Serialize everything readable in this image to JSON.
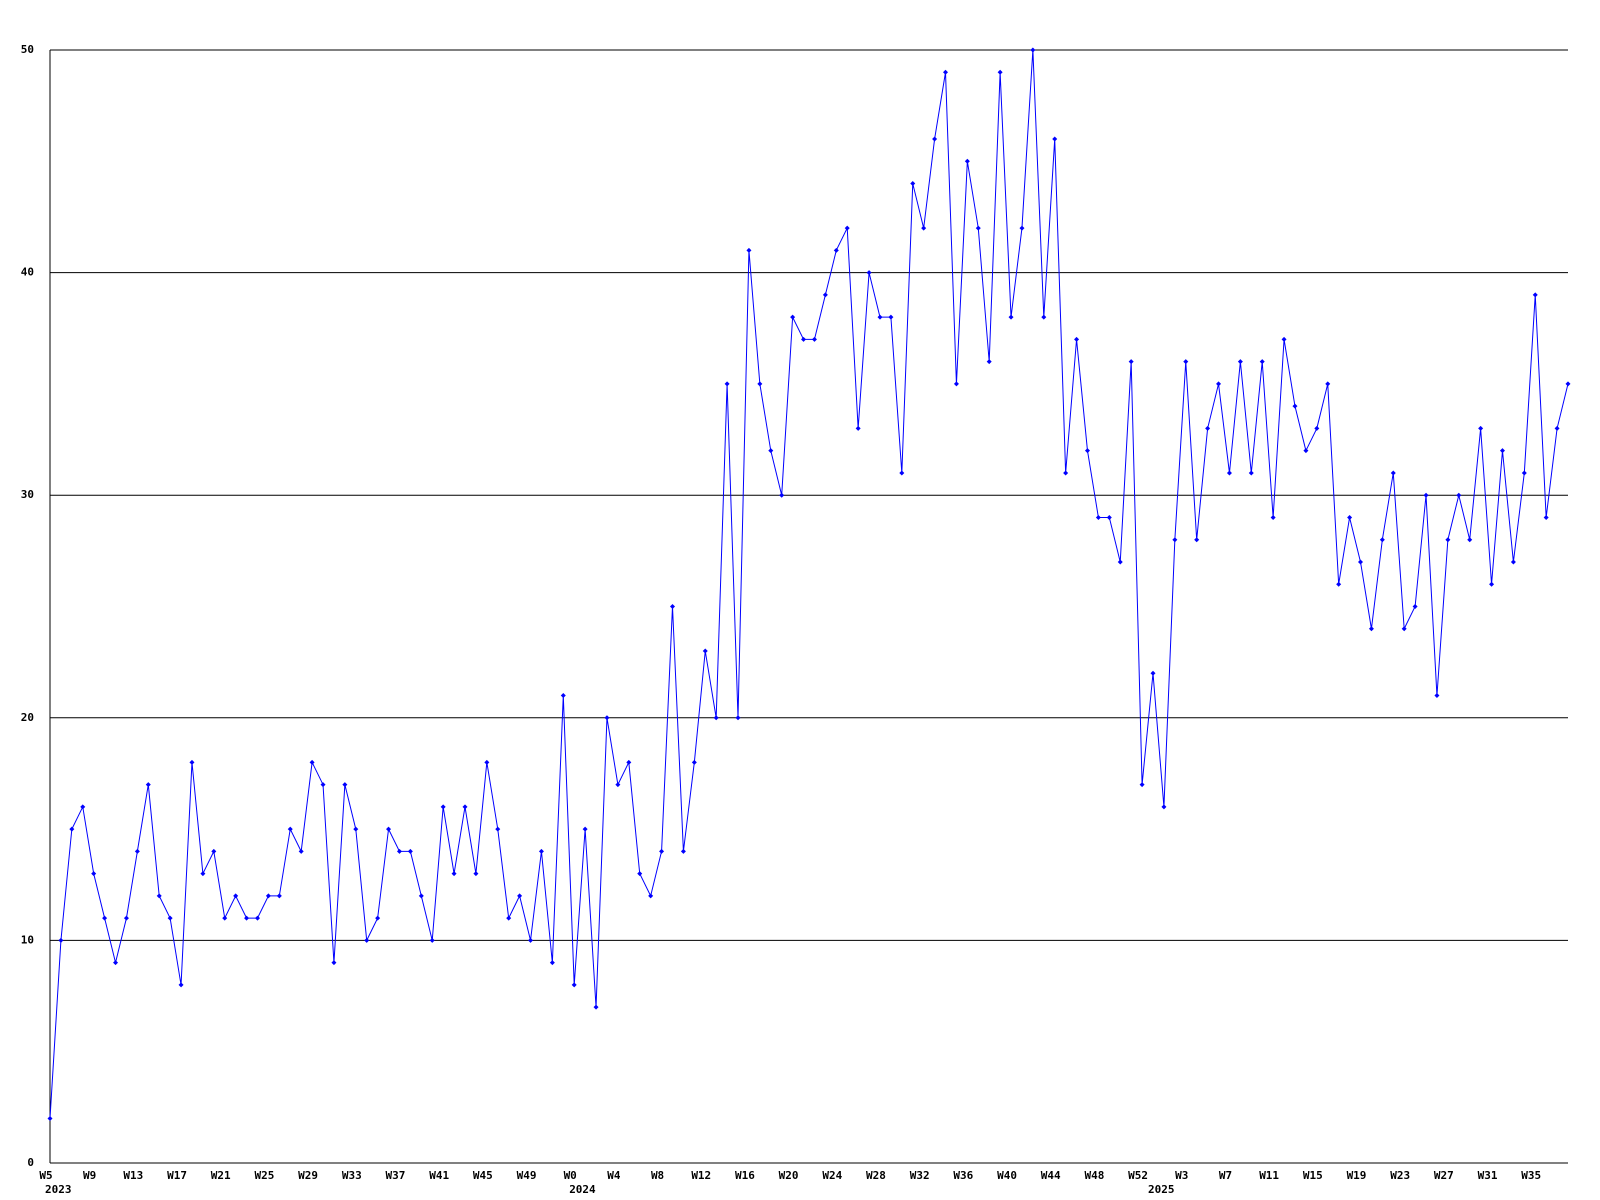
{
  "chart_data": {
    "type": "line",
    "categories": [
      "W5",
      null,
      null,
      null,
      "W9",
      null,
      null,
      null,
      "W13",
      null,
      null,
      null,
      "W17",
      null,
      null,
      null,
      "W21",
      null,
      null,
      null,
      "W25",
      null,
      null,
      null,
      "W29",
      null,
      null,
      null,
      "W33",
      null,
      null,
      null,
      "W37",
      null,
      null,
      null,
      "W41",
      null,
      null,
      null,
      "W45",
      null,
      null,
      null,
      "W49",
      null,
      null,
      null,
      "W0",
      null,
      null,
      null,
      "W4",
      null,
      null,
      null,
      "W8",
      null,
      null,
      null,
      "W12",
      null,
      null,
      null,
      "W16",
      null,
      null,
      null,
      "W20",
      null,
      null,
      null,
      "W24",
      null,
      null,
      null,
      "W28",
      null,
      null,
      null,
      "W32",
      null,
      null,
      null,
      "W36",
      null,
      null,
      null,
      "W40",
      null,
      null,
      null,
      "W44",
      null,
      null,
      null,
      "W48",
      null,
      null,
      null,
      "W52",
      null,
      null,
      null,
      "W3",
      null,
      null,
      null,
      "W7",
      null,
      null,
      null,
      "W11",
      null,
      null,
      null,
      "W15",
      null,
      null,
      null,
      "W19",
      null,
      null,
      null,
      "W23",
      null,
      null,
      null,
      "W27",
      null,
      null,
      null,
      "W31",
      null,
      null,
      null,
      "W35",
      null,
      null,
      null
    ],
    "years": [
      "2023",
      null,
      null,
      null,
      null,
      null,
      null,
      null,
      null,
      null,
      null,
      null,
      null,
      null,
      null,
      null,
      null,
      null,
      null,
      null,
      null,
      null,
      null,
      null,
      null,
      null,
      null,
      null,
      null,
      null,
      null,
      null,
      null,
      null,
      null,
      null,
      null,
      null,
      null,
      null,
      null,
      null,
      null,
      null,
      null,
      null,
      null,
      null,
      "2024",
      null,
      null,
      null,
      null,
      null,
      null,
      null,
      null,
      null,
      null,
      null,
      null,
      null,
      null,
      null,
      null,
      null,
      null,
      null,
      null,
      null,
      null,
      null,
      null,
      null,
      null,
      null,
      null,
      null,
      null,
      null,
      null,
      null,
      null,
      null,
      null,
      null,
      null,
      null,
      null,
      null,
      null,
      null,
      null,
      null,
      null,
      null,
      null,
      null,
      null,
      null,
      null,
      "2025",
      null,
      null,
      null,
      null,
      null,
      null,
      null,
      null,
      null,
      null,
      null,
      null,
      null,
      null,
      null,
      null,
      null,
      null,
      null,
      null,
      null,
      null,
      null,
      null,
      null,
      null,
      null,
      null,
      null,
      null,
      null,
      null,
      null,
      null,
      null,
      null,
      null,
      null
    ],
    "values": [
      2,
      10,
      15,
      16,
      13,
      11,
      9,
      11,
      14,
      17,
      12,
      11,
      8,
      18,
      13,
      14,
      11,
      12,
      11,
      11,
      12,
      12,
      15,
      14,
      18,
      17,
      9,
      17,
      15,
      10,
      11,
      15,
      14,
      14,
      12,
      10,
      16,
      13,
      16,
      13,
      18,
      15,
      11,
      12,
      10,
      14,
      9,
      21,
      8,
      15,
      7,
      20,
      17,
      18,
      13,
      12,
      14,
      25,
      14,
      18,
      23,
      20,
      35,
      20,
      41,
      35,
      32,
      30,
      38,
      37,
      37,
      39,
      41,
      42,
      33,
      40,
      38,
      38,
      31,
      44,
      42,
      46,
      49,
      35,
      45,
      42,
      36,
      49,
      38,
      42,
      50,
      38,
      46,
      31,
      37,
      32,
      29,
      29,
      27,
      36,
      17,
      22,
      16,
      28,
      36,
      28,
      33,
      35,
      31,
      36,
      31,
      36,
      29,
      37,
      34,
      32,
      33,
      35,
      26,
      29,
      27,
      24,
      28,
      31,
      24,
      25,
      30,
      21,
      28,
      30,
      28,
      33,
      26,
      32,
      27,
      31,
      39,
      29,
      33,
      35
    ],
    "color": "#0000ff",
    "ylim": [
      0,
      50
    ],
    "yticks": [
      0,
      10,
      20,
      30,
      40,
      50
    ],
    "grid": true
  }
}
